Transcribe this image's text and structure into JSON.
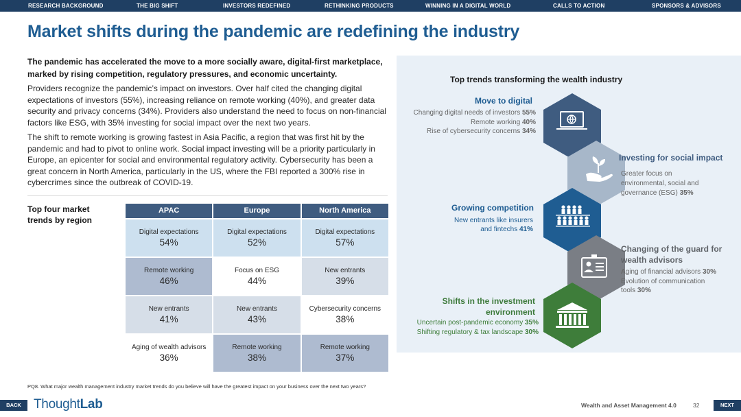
{
  "nav": [
    {
      "label": "RESEARCH BACKGROUND"
    },
    {
      "label": "THE BIG SHIFT"
    },
    {
      "label": "INVESTORS REDEFINED"
    },
    {
      "label": "RETHINKING PRODUCTS"
    },
    {
      "label": "WINNING IN A DIGITAL WORLD"
    },
    {
      "label": "CALLS TO ACTION"
    },
    {
      "label": "SPONSORS & ADVISORS"
    }
  ],
  "title": "Market shifts during the pandemic are redefining the industry",
  "lead": "The pandemic has accelerated the move to a more socially aware, digital-first marketplace, marked by rising competition, regulatory pressures, and economic uncertainty.",
  "paragraphs": [
    "Providers recognize the pandemic’s impact on investors. Over half cited the changing digital expectations of investors (55%), increasing reliance on remote working (40%), and greater data security and privacy concerns (34%). Providers also understand the need to focus on non-financial factors like ESG, with 35% investing for social impact over the next two years.",
    "The shift to remote working is growing fastest in Asia Pacific, a region that was first hit by the pandemic and had to pivot to online work. Social impact investing will be a priority particularly in Europe, an epicenter for social and environmental regulatory activity. Cybersecurity has been a great concern in North America, particularly in the US, where the FBI reported a 300% rise in cybercrimes since the outbreak of COVID-19."
  ],
  "table_label": "Top four market trends by region",
  "table": {
    "headers": [
      "APAC",
      "Europe",
      "North America"
    ],
    "rows": [
      [
        {
          "label": "Digital expectations",
          "value": "54%"
        },
        {
          "label": "Digital expectations",
          "value": "52%"
        },
        {
          "label": "Digital expectations",
          "value": "57%"
        }
      ],
      [
        {
          "label": "Remote working",
          "value": "46%"
        },
        {
          "label": "Focus on ESG",
          "value": "44%"
        },
        {
          "label": "New entrants",
          "value": "39%"
        }
      ],
      [
        {
          "label": "New entrants",
          "value": "41%"
        },
        {
          "label": "New entrants",
          "value": "43%"
        },
        {
          "label": "Cybersecurity concerns",
          "value": "38%"
        }
      ],
      [
        {
          "label": "Aging of wealth advisors",
          "value": "36%"
        },
        {
          "label": "Remote working",
          "value": "38%"
        },
        {
          "label": "Remote working",
          "value": "37%"
        }
      ]
    ]
  },
  "footnote": "PQ8. What major wealth management industry market trends do you believe will have the greatest impact on your business over the next two years?",
  "panel": {
    "title": "Top trends transforming the wealth industry",
    "trends": [
      {
        "heading": "Move to digital",
        "icon": "laptop-globe-icon",
        "lines": [
          {
            "text": "Changing digital needs of investors",
            "value": "55%"
          },
          {
            "text": "Remote working",
            "value": "40%"
          },
          {
            "text": "Rise of cybersecurity concerns",
            "value": "34%"
          }
        ]
      },
      {
        "heading": "Investing for social impact",
        "icon": "hand-plant-icon",
        "lines": [
          {
            "text": "Greater focus on",
            "value": ""
          },
          {
            "text": "environmental, social and",
            "value": ""
          },
          {
            "text": "governance (ESG)",
            "value": "35%"
          }
        ]
      },
      {
        "heading": "Growing competition",
        "icon": "people-group-icon",
        "lines": [
          {
            "text": "New entrants like insurers",
            "value": ""
          },
          {
            "text": "and fintechs",
            "value": "41%"
          }
        ]
      },
      {
        "heading_lines": [
          "Changing of the guard for",
          "wealth advisors"
        ],
        "icon": "id-card-icon",
        "lines": [
          {
            "text": "Aging of financial advisors",
            "value": "30%"
          },
          {
            "text": "Evolution of communication",
            "value": ""
          },
          {
            "text": "tools",
            "value": "30%"
          }
        ]
      },
      {
        "heading_lines": [
          "Shifts in the investment",
          "environment"
        ],
        "icon": "bank-building-icon",
        "lines": [
          {
            "text": "Uncertain post-pandemic economy",
            "value": "35%"
          },
          {
            "text": "Shifting regulatory & tax landscape",
            "value": "30%"
          }
        ]
      }
    ]
  },
  "footer": {
    "back": "BACK",
    "next": "NEXT",
    "logo_a": "Thought",
    "logo_b": "Lab",
    "report_title": "Wealth and Asset Management 4.0",
    "page_number": "32"
  },
  "colors": {
    "nav": "#1f3f63",
    "title": "#1f5d92",
    "hex_dark": "#3f5c80",
    "hex_grey": "#a7b7c9",
    "hex_blue": "#1f5d92",
    "hex_slate": "#7a7e85",
    "hex_green": "#3e7d3a",
    "panel_bg": "#e9f0f7"
  }
}
